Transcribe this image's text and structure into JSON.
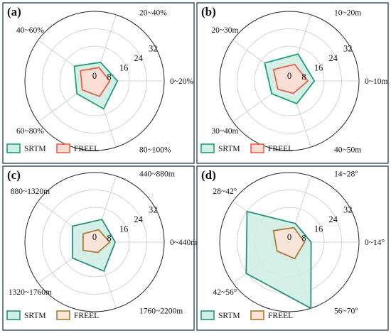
{
  "chart_data": [
    {
      "type": "radar",
      "panel_label": "(a)",
      "categories": [
        "0~20%",
        "20~40%",
        "40~60%",
        "60~80%",
        "80~100%"
      ],
      "ticks": [
        "0",
        "8",
        "16",
        "24",
        "32"
      ],
      "rlim": [
        0,
        32
      ],
      "grid": true,
      "legend_position": "bottom-left",
      "series": [
        {
          "name": "SRTM",
          "values": [
            10.5,
            9.0,
            11.5,
            10.0,
            13.5
          ],
          "color": "#1f9e80",
          "fill": "#cfeee4"
        },
        {
          "name": "FREEL",
          "values": [
            7.0,
            6.5,
            8.0,
            7.0,
            7.5
          ],
          "color": "#e8604a",
          "fill": "#fbdcd4"
        }
      ]
    },
    {
      "type": "radar",
      "panel_label": "(b)",
      "categories": [
        "0~10m",
        "10~20m",
        "20~30m",
        "30~40m",
        "40~50m"
      ],
      "ticks": [
        "0",
        "8",
        "16",
        "24",
        "32"
      ],
      "rlim": [
        0,
        32
      ],
      "grid": true,
      "legend_position": "bottom-left",
      "series": [
        {
          "name": "SRTM",
          "values": [
            11.5,
            13.0,
            14.0,
            10.0,
            11.0
          ],
          "color": "#1f9e80",
          "fill": "#cfeee4"
        },
        {
          "name": "FREEL",
          "values": [
            8.5,
            8.0,
            9.0,
            6.5,
            6.0
          ],
          "color": "#e8604a",
          "fill": "#fbdcd4"
        }
      ]
    },
    {
      "type": "radar",
      "panel_label": "(c)",
      "categories": [
        "0~440m",
        "440~880m",
        "880~1320m",
        "1320~1760m",
        "1760~2200m"
      ],
      "ticks": [
        "0",
        "8",
        "16",
        "24",
        "32"
      ],
      "rlim": [
        0,
        32
      ],
      "grid": true,
      "legend_position": "bottom-left",
      "series": [
        {
          "name": "SRTM",
          "values": [
            9.5,
            11.0,
            12.5,
            12.5,
            14.0
          ],
          "color": "#2e8f7f",
          "fill": "#cfeee4"
        },
        {
          "name": "FREEL",
          "values": [
            7.0,
            6.0,
            6.5,
            6.5,
            5.0
          ],
          "color": "#a67c3a",
          "fill": "#fbe3d8"
        }
      ]
    },
    {
      "type": "radar",
      "panel_label": "(d)",
      "categories": [
        "0~14°",
        "14~28°",
        "28~42°",
        "42~56°",
        "56~70°"
      ],
      "ticks": [
        "0",
        "8",
        "16",
        "24",
        "32"
      ],
      "rlim": [
        0,
        32
      ],
      "grid": true,
      "legend_position": "bottom-left",
      "series": [
        {
          "name": "SRTM",
          "values": [
            10.0,
            9.0,
            24.0,
            24.5,
            32.0
          ],
          "color": "#2e8f7f",
          "fill": "#cfeee4"
        },
        {
          "name": "FREEL",
          "values": [
            7.0,
            7.0,
            9.0,
            7.0,
            8.0
          ],
          "color": "#a67c3a",
          "fill": "#fbe3d8"
        }
      ]
    }
  ]
}
